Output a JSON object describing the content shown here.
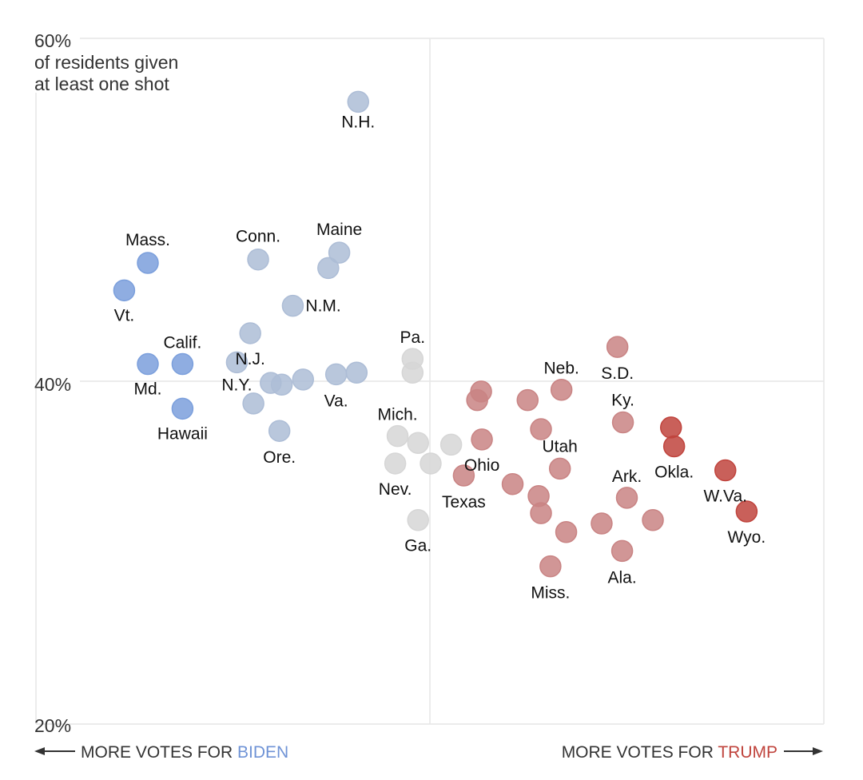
{
  "chart_data": {
    "type": "scatter",
    "title": "",
    "xlabel": "",
    "ylabel": "",
    "ylabel_lines": [
      "of residents given",
      "at least one shot"
    ],
    "ylim": [
      20,
      60
    ],
    "xlim": [
      0,
      100
    ],
    "y_ticks": [
      {
        "value": 60,
        "label": "60%"
      },
      {
        "value": 40,
        "label": "40%"
      },
      {
        "value": 20,
        "label": "20%"
      }
    ],
    "x_gridlines": [
      0,
      50,
      100
    ],
    "grid": true,
    "footer": {
      "left_prefix": "MORE VOTES FOR ",
      "left_party": "BIDEN",
      "right_prefix": "MORE VOTES FOR ",
      "right_party": "TRUMP"
    },
    "colors": {
      "strong_dem": "#7b9fdc",
      "lean_dem": "#adbdd6",
      "swing": "#d6d6d6",
      "lean_rep": "#c98484",
      "strong_rep": "#c0443d",
      "biden_text": "#6f93d6",
      "trump_text": "#c0443d",
      "grid": "#e6e6e6"
    },
    "points": [
      {
        "label": "N.H.",
        "x": 40.9,
        "y": 56.3,
        "group": "lean_dem"
      },
      {
        "label": "Mass.",
        "x": 14.2,
        "y": 46.9,
        "group": "strong_dem"
      },
      {
        "label": "Vt.",
        "x": 11.2,
        "y": 45.3,
        "group": "strong_dem"
      },
      {
        "label": "Calif.",
        "x": 18.6,
        "y": 41.0,
        "group": "strong_dem"
      },
      {
        "label": "Md.",
        "x": 14.2,
        "y": 41.0,
        "group": "strong_dem"
      },
      {
        "label": "Hawaii",
        "x": 18.6,
        "y": 38.4,
        "group": "strong_dem"
      },
      {
        "label": "Conn.",
        "x": 28.2,
        "y": 47.1,
        "group": "lean_dem"
      },
      {
        "label": "Maine",
        "x": 38.5,
        "y": 47.5,
        "group": "lean_dem"
      },
      {
        "label": "",
        "x": 37.1,
        "y": 46.6,
        "group": "lean_dem"
      },
      {
        "label": "N.M.",
        "x": 32.6,
        "y": 44.4,
        "group": "lean_dem"
      },
      {
        "label": "N.J.",
        "x": 27.2,
        "y": 42.8,
        "group": "lean_dem"
      },
      {
        "label": "N.Y.",
        "x": 25.5,
        "y": 41.1,
        "group": "lean_dem"
      },
      {
        "label": "",
        "x": 29.8,
        "y": 39.9,
        "group": "lean_dem"
      },
      {
        "label": "",
        "x": 31.2,
        "y": 39.8,
        "group": "lean_dem"
      },
      {
        "label": "",
        "x": 33.9,
        "y": 40.1,
        "group": "lean_dem"
      },
      {
        "label": "Va.",
        "x": 38.1,
        "y": 40.4,
        "group": "lean_dem"
      },
      {
        "label": "",
        "x": 40.7,
        "y": 40.5,
        "group": "lean_dem"
      },
      {
        "label": "",
        "x": 27.6,
        "y": 38.7,
        "group": "lean_dem"
      },
      {
        "label": "Ore.",
        "x": 30.9,
        "y": 37.1,
        "group": "lean_dem"
      },
      {
        "label": "Pa.",
        "x": 47.8,
        "y": 41.3,
        "group": "swing"
      },
      {
        "label": "",
        "x": 47.8,
        "y": 40.5,
        "group": "swing"
      },
      {
        "label": "Mich.",
        "x": 45.9,
        "y": 36.8,
        "group": "swing"
      },
      {
        "label": "",
        "x": 48.5,
        "y": 36.4,
        "group": "swing"
      },
      {
        "label": "",
        "x": 52.7,
        "y": 36.3,
        "group": "swing"
      },
      {
        "label": "Nev.",
        "x": 45.6,
        "y": 35.2,
        "group": "swing"
      },
      {
        "label": "",
        "x": 50.1,
        "y": 35.2,
        "group": "swing"
      },
      {
        "label": "Ga.",
        "x": 48.5,
        "y": 31.9,
        "group": "swing"
      },
      {
        "label": "",
        "x": 56.5,
        "y": 39.4,
        "group": "lean_rep"
      },
      {
        "label": "",
        "x": 56.0,
        "y": 38.9,
        "group": "lean_rep"
      },
      {
        "label": "Ohio",
        "x": 56.6,
        "y": 36.6,
        "group": "lean_rep"
      },
      {
        "label": "Texas",
        "x": 54.3,
        "y": 34.5,
        "group": "lean_rep"
      },
      {
        "label": "",
        "x": 60.5,
        "y": 34.0,
        "group": "lean_rep"
      },
      {
        "label": "",
        "x": 62.4,
        "y": 38.9,
        "group": "lean_rep"
      },
      {
        "label": "",
        "x": 64.1,
        "y": 37.2,
        "group": "lean_rep"
      },
      {
        "label": "Neb.",
        "x": 66.7,
        "y": 39.5,
        "group": "lean_rep"
      },
      {
        "label": "Utah",
        "x": 66.5,
        "y": 34.9,
        "group": "lean_rep"
      },
      {
        "label": "",
        "x": 63.8,
        "y": 33.3,
        "group": "lean_rep"
      },
      {
        "label": "",
        "x": 64.1,
        "y": 32.3,
        "group": "lean_rep"
      },
      {
        "label": "",
        "x": 67.3,
        "y": 31.2,
        "group": "lean_rep"
      },
      {
        "label": "Miss.",
        "x": 65.3,
        "y": 29.2,
        "group": "lean_rep"
      },
      {
        "label": "",
        "x": 71.8,
        "y": 31.7,
        "group": "lean_rep"
      },
      {
        "label": "S.D.",
        "x": 73.8,
        "y": 42.0,
        "group": "lean_rep"
      },
      {
        "label": "Ky.",
        "x": 74.5,
        "y": 37.6,
        "group": "lean_rep"
      },
      {
        "label": "Ark.",
        "x": 75.0,
        "y": 33.2,
        "group": "lean_rep"
      },
      {
        "label": "",
        "x": 78.3,
        "y": 31.9,
        "group": "lean_rep"
      },
      {
        "label": "Ala.",
        "x": 74.4,
        "y": 30.1,
        "group": "lean_rep"
      },
      {
        "label": "",
        "x": 80.6,
        "y": 37.3,
        "group": "strong_rep"
      },
      {
        "label": "Okla.",
        "x": 81.0,
        "y": 36.2,
        "group": "strong_rep"
      },
      {
        "label": "W.Va.",
        "x": 87.5,
        "y": 34.8,
        "group": "strong_rep"
      },
      {
        "label": "Wyo.",
        "x": 90.2,
        "y": 32.4,
        "group": "strong_rep"
      }
    ]
  }
}
